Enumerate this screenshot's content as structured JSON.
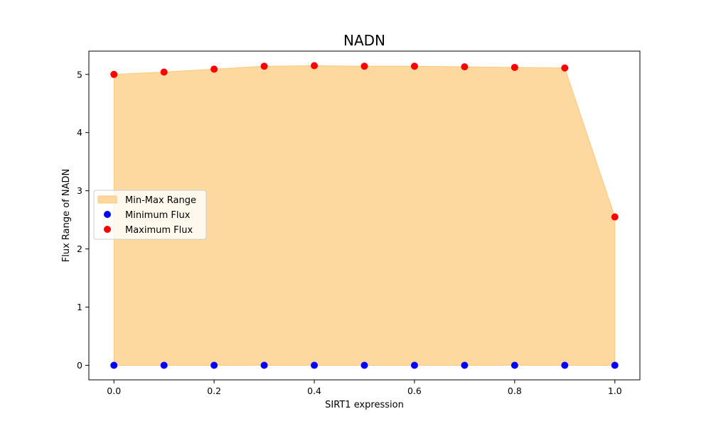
{
  "chart_data": {
    "type": "scatter",
    "title": "NADN",
    "xlabel": "SIRT1 expression",
    "ylabel": "Flux Range of NADN",
    "xlim": [
      -0.05,
      1.05
    ],
    "ylim": [
      -0.25,
      5.4
    ],
    "xticks": [
      0.0,
      0.2,
      0.4,
      0.6,
      0.8,
      1.0
    ],
    "xtick_labels": [
      "0.0",
      "0.2",
      "0.4",
      "0.6",
      "0.8",
      "1.0"
    ],
    "yticks": [
      0,
      1,
      2,
      3,
      4,
      5
    ],
    "ytick_labels": [
      "0",
      "1",
      "2",
      "3",
      "4",
      "5"
    ],
    "x": [
      0.0,
      0.1,
      0.2,
      0.3,
      0.4,
      0.5,
      0.6,
      0.7,
      0.8,
      0.9,
      1.0
    ],
    "series": [
      {
        "name": "Minimum Flux",
        "color": "#0000ff",
        "values": [
          0,
          0,
          0,
          0,
          0,
          0,
          0,
          0,
          0,
          0,
          0
        ]
      },
      {
        "name": "Maximum Flux",
        "color": "#ff0000",
        "values": [
          5.0,
          5.04,
          5.09,
          5.14,
          5.15,
          5.14,
          5.14,
          5.13,
          5.12,
          5.11,
          2.55
        ]
      }
    ],
    "fill": {
      "name": "Min-Max Range",
      "color": "#fdd9a0",
      "edge_color": "#fcc97a"
    },
    "legend": {
      "placement": "center-left"
    },
    "grid": false
  }
}
